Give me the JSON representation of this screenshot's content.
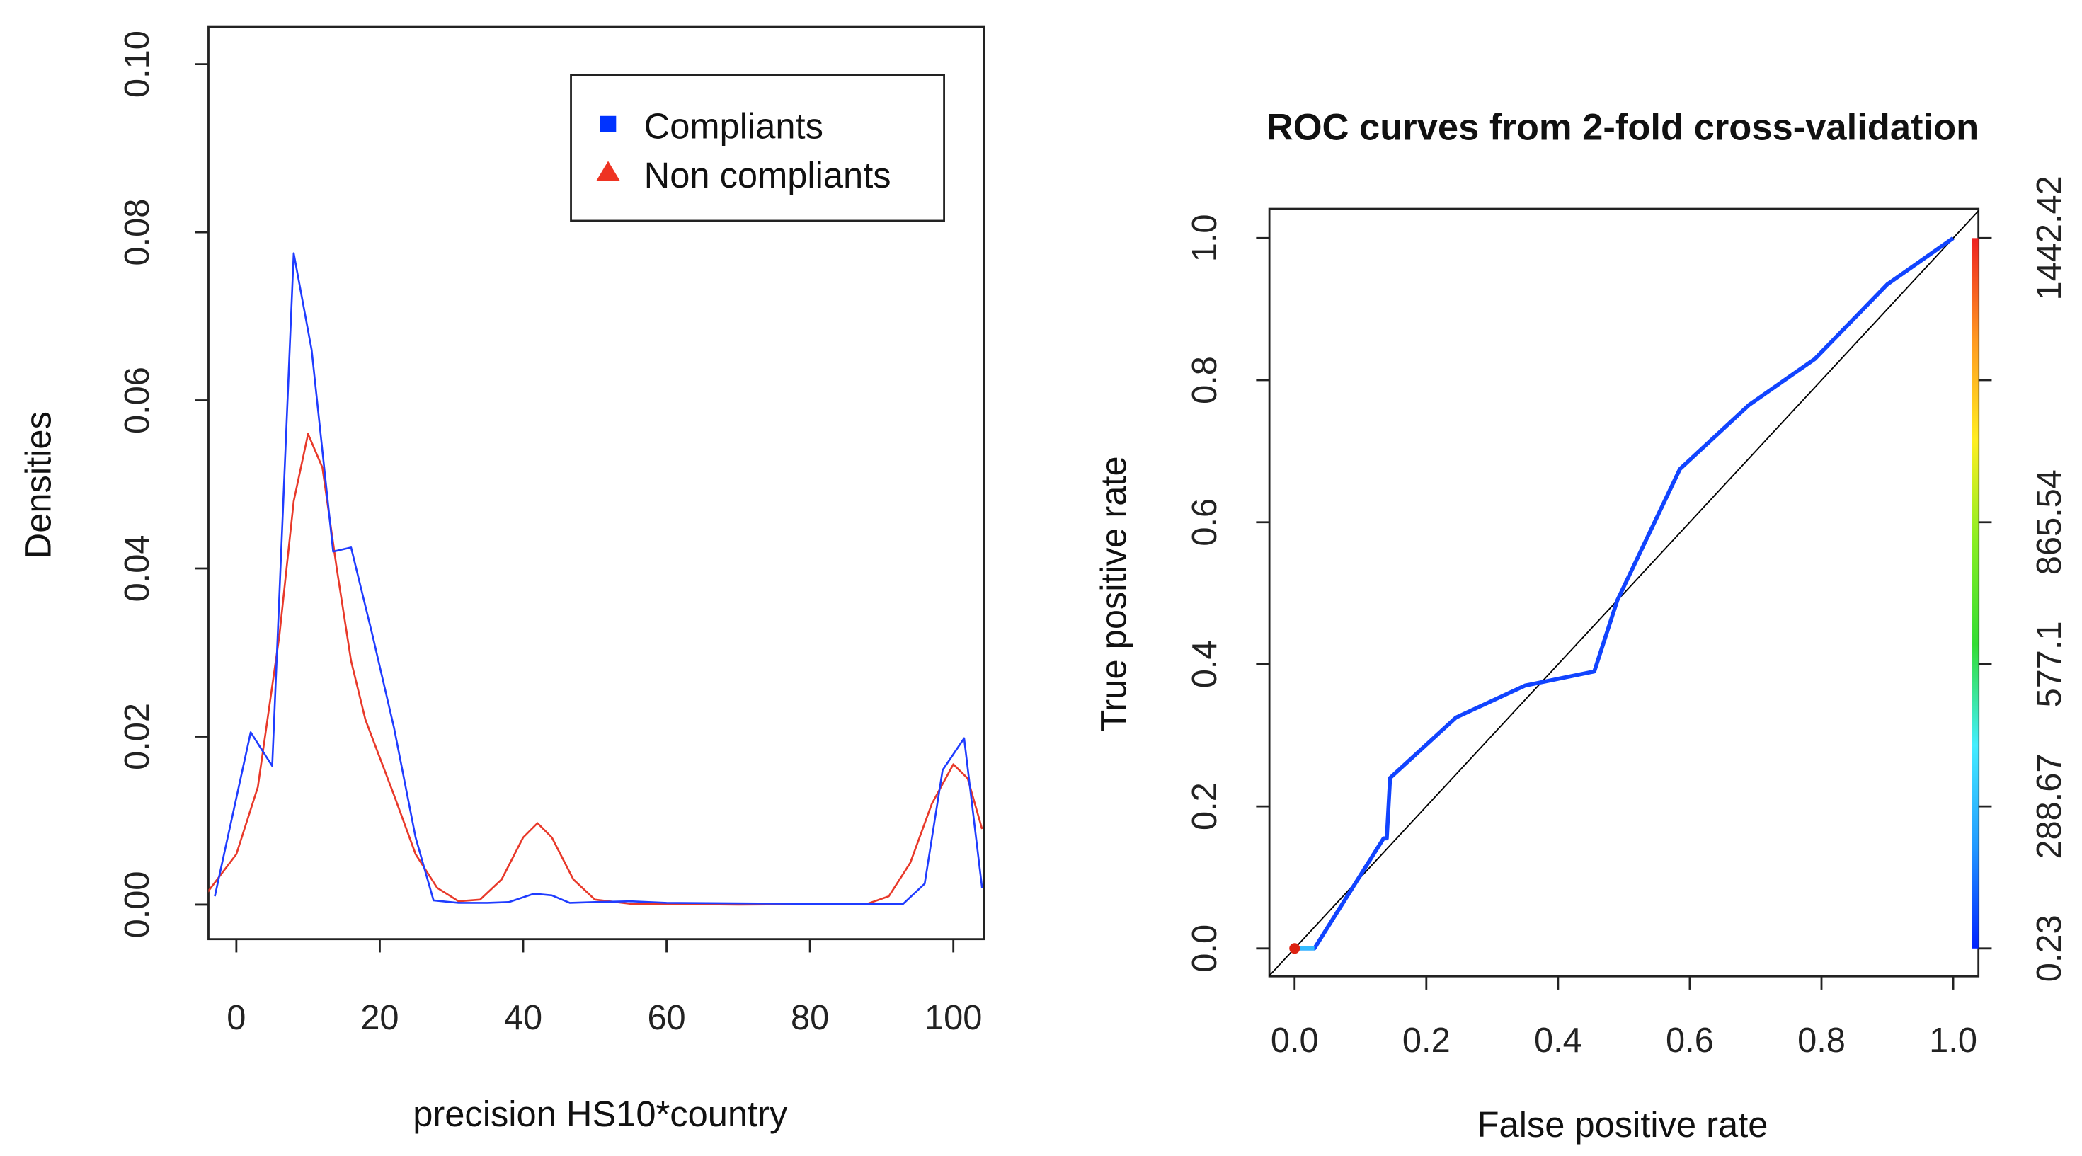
{
  "chart_data": [
    {
      "type": "line",
      "title": "",
      "xlabel": "precision  HS10*country",
      "ylabel": "Densities",
      "xlim": [
        -4,
        104
      ],
      "ylim": [
        -0.004,
        0.104
      ],
      "xticks": [
        0,
        20,
        40,
        60,
        80,
        100
      ],
      "xtick_labels": [
        "0",
        "20",
        "40",
        "60",
        "80",
        "100"
      ],
      "yticks": [
        0,
        0.02,
        0.04,
        0.06,
        0.08,
        0.1
      ],
      "ytick_labels": [
        "0.00",
        "0.02",
        "0.04",
        "0.06",
        "0.08",
        "0.10"
      ],
      "legend": {
        "position": "top-right",
        "entries": [
          {
            "label": "Compliants",
            "marker": "square",
            "color": "#0033ff"
          },
          {
            "label": "Non compliants",
            "marker": "triangle",
            "color": "#ee3322"
          }
        ]
      },
      "series": [
        {
          "name": "Compliants",
          "color": "#1f3cff",
          "x": [
            -3,
            2,
            5,
            8,
            10.5,
            13.5,
            16,
            19,
            22,
            25,
            27.5,
            31,
            35,
            38,
            41.5,
            44,
            46.5,
            50,
            55,
            60,
            80,
            93,
            96,
            98.5,
            101.5,
            104
          ],
          "y": [
            0.001,
            0.0205,
            0.0165,
            0.0775,
            0.066,
            0.042,
            0.0425,
            0.032,
            0.021,
            0.008,
            0.0005,
            0.0002,
            0.0002,
            0.0003,
            0.0013,
            0.0011,
            0.0002,
            0.0003,
            0.0004,
            0.0002,
            0.0001,
            0.0001,
            0.0025,
            0.016,
            0.0198,
            0.002
          ]
        },
        {
          "name": "Non compliants",
          "color": "#e8392a",
          "x": [
            -4,
            0,
            3,
            6,
            8,
            10,
            12,
            14,
            16,
            18,
            22,
            25,
            28,
            31,
            34,
            37,
            40,
            42,
            44,
            47,
            50,
            55,
            70,
            88,
            91,
            94,
            97,
            100,
            102,
            104
          ],
          "y": [
            0.0015,
            0.006,
            0.014,
            0.032,
            0.048,
            0.056,
            0.052,
            0.04,
            0.029,
            0.022,
            0.013,
            0.006,
            0.002,
            0.0004,
            0.0006,
            0.003,
            0.008,
            0.0097,
            0.008,
            0.003,
            0.0006,
            0.0001,
            0,
            0.0001,
            0.001,
            0.005,
            0.012,
            0.0167,
            0.015,
            0.009
          ]
        }
      ]
    },
    {
      "type": "line",
      "title": "ROC curves from 2-fold cross-validation",
      "xlabel": "False positive rate",
      "ylabel": "True positive rate",
      "xlim": [
        -0.04,
        1.04
      ],
      "ylim": [
        -0.04,
        1.04
      ],
      "xticks": [
        0,
        0.2,
        0.4,
        0.6,
        0.8,
        1.0
      ],
      "xtick_labels": [
        "0.0",
        "0.2",
        "0.4",
        "0.6",
        "0.8",
        "1.0"
      ],
      "yticks": [
        0,
        0.2,
        0.4,
        0.6,
        0.8,
        1.0
      ],
      "ytick_labels": [
        "0.0",
        "0.2",
        "0.4",
        "0.6",
        "0.8",
        "1.0"
      ],
      "colorbar": {
        "ticks": [
          0,
          0.2,
          0.4,
          0.6,
          0.8,
          1.0
        ],
        "labels": [
          "0.23",
          "288.67",
          "577.1",
          "865.54",
          "",
          "1442.42"
        ],
        "colors": [
          "#0022ff",
          "#2299ff",
          "#44eeff",
          "#33dd33",
          "#88ee22",
          "#ffee22",
          "#ff9922",
          "#ee2222"
        ]
      },
      "diagonal": {
        "x": [
          -0.04,
          1.04
        ],
        "y": [
          -0.04,
          1.04
        ],
        "color": "#000000"
      },
      "series": [
        {
          "name": "ROC",
          "color": "#1144ff",
          "x": [
            0,
            0.03,
            0.135,
            0.14,
            0.145,
            0.245,
            0.35,
            0.455,
            0.49,
            0.585,
            0.69,
            0.79,
            0.9,
            1.0
          ],
          "y": [
            0,
            0,
            0.155,
            0.155,
            0.24,
            0.325,
            0.37,
            0.39,
            0.49,
            0.675,
            0.765,
            0.83,
            0.935,
            1.0
          ]
        }
      ],
      "start_segment_color": "#33bbff",
      "start_point": {
        "x": 0,
        "y": 0,
        "color": "#dd2211"
      }
    }
  ]
}
